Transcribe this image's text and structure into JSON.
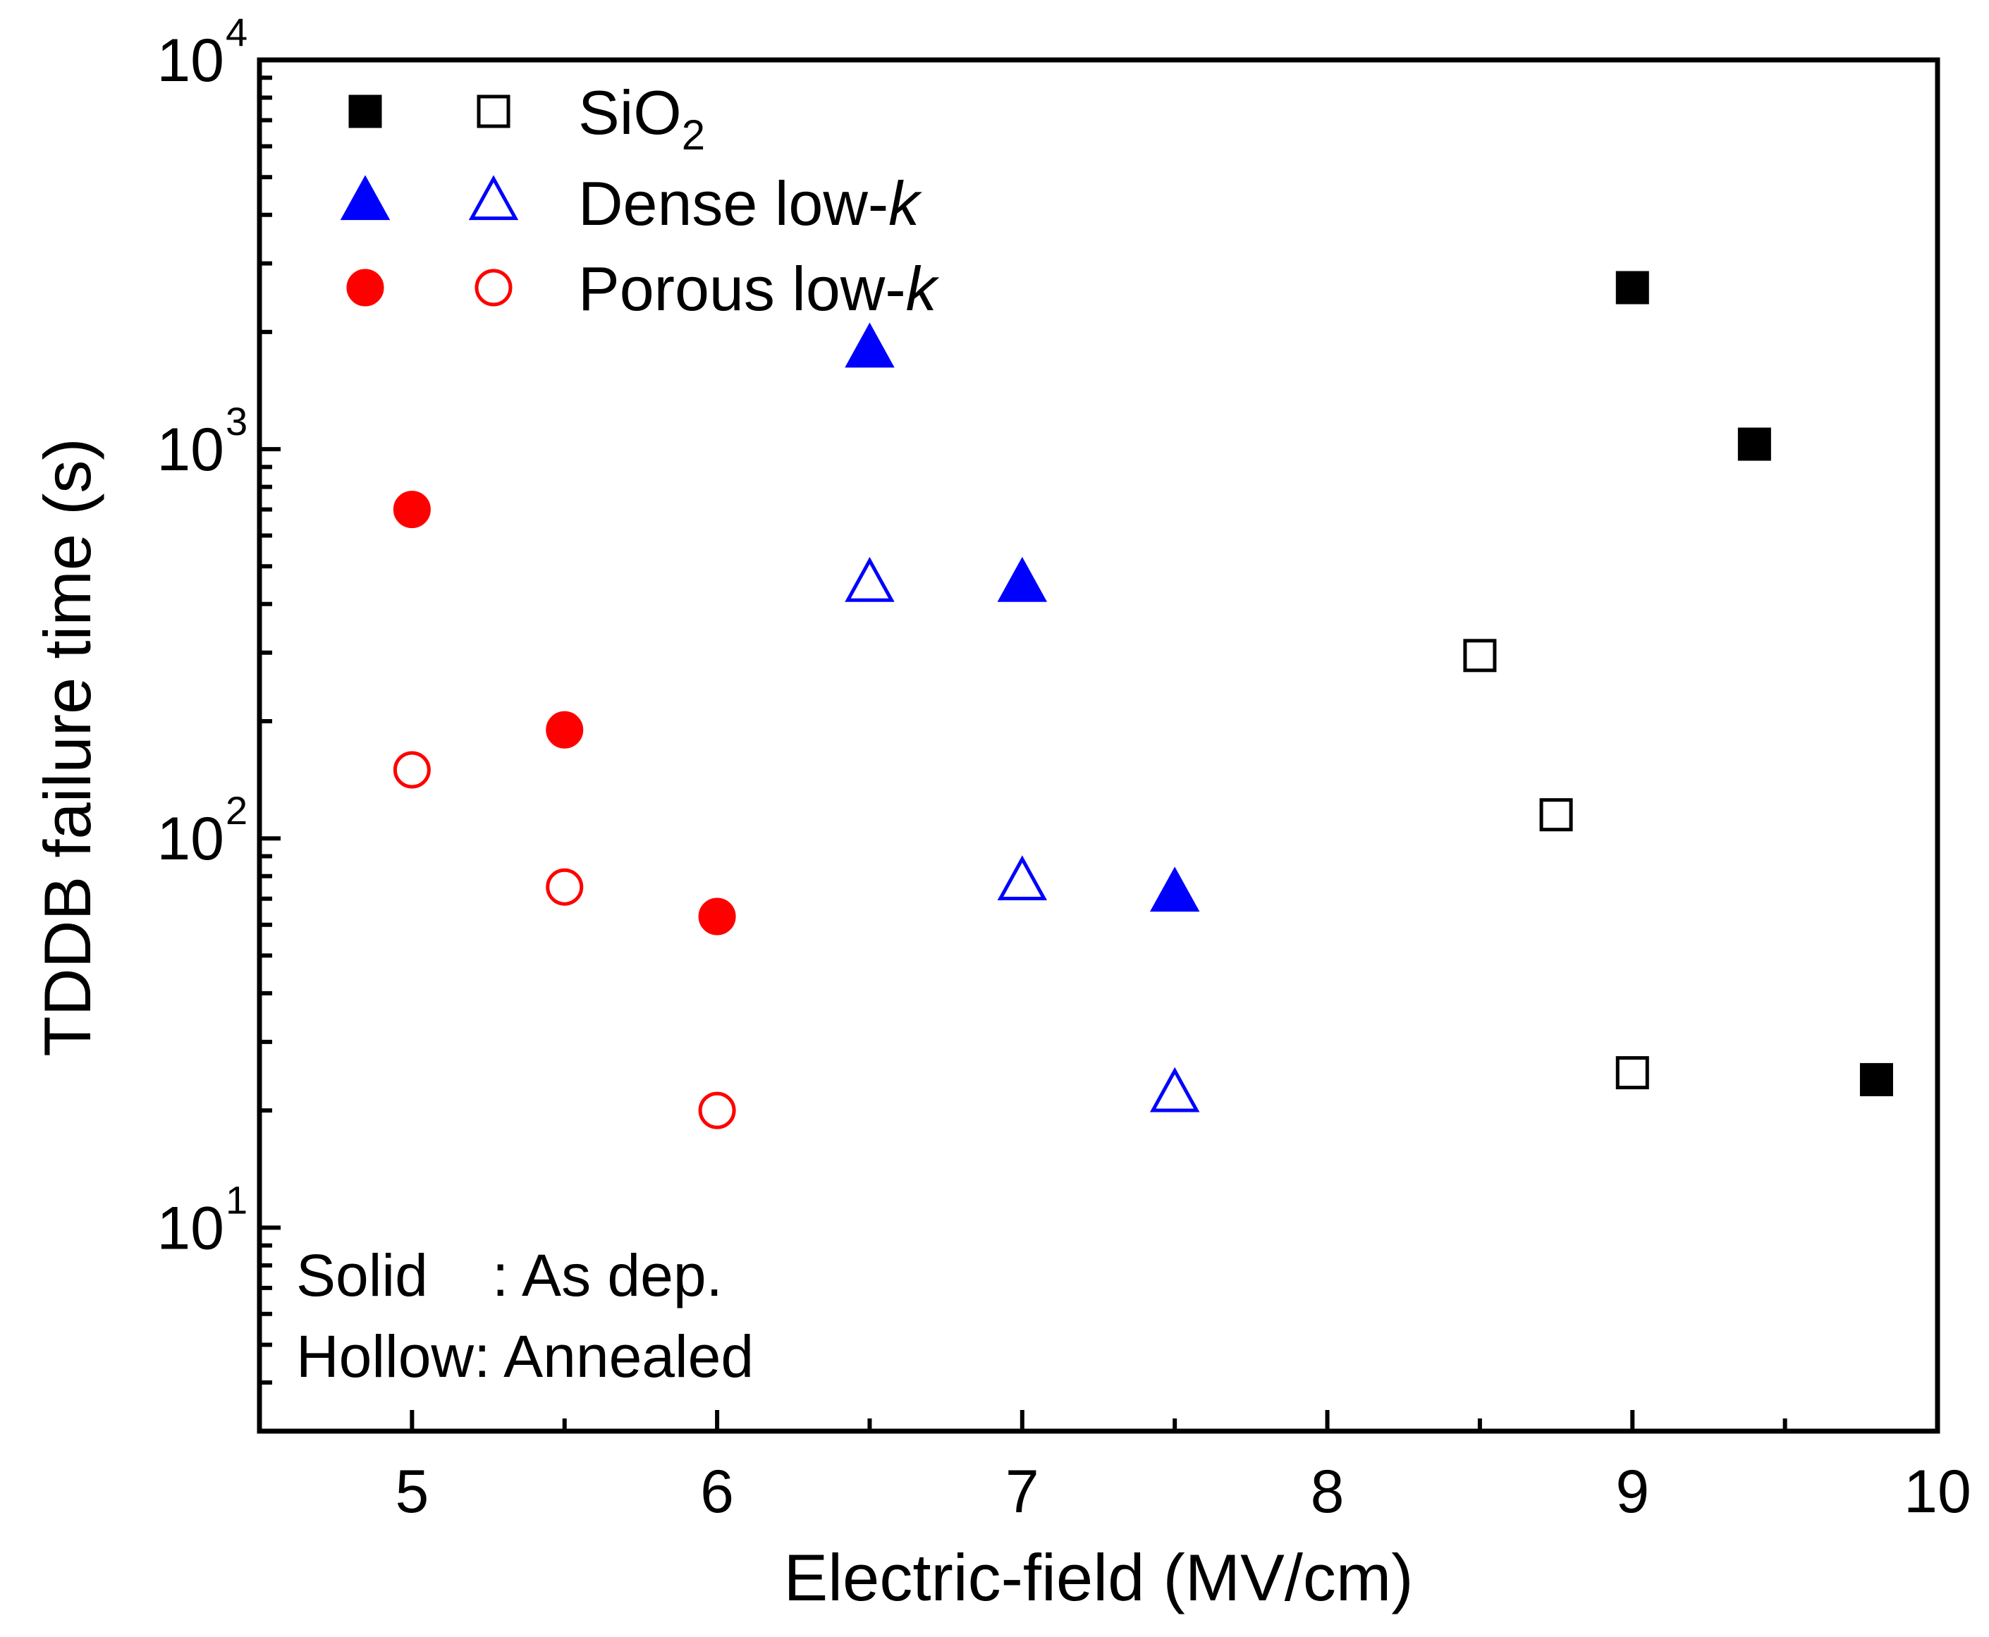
{
  "chart_data": {
    "type": "scatter",
    "title": "",
    "xlabel": "Electric-field (MV/cm)",
    "ylabel": "TDDB failure time (s)",
    "xlim": [
      4.5,
      10
    ],
    "ylim": [
      3,
      10000
    ],
    "yscale": "log",
    "x_ticks": [
      "5",
      "6",
      "7",
      "8",
      "9",
      "10"
    ],
    "y_ticks": [
      {
        "base": "10",
        "exp": "1"
      },
      {
        "base": "10",
        "exp": "2"
      },
      {
        "base": "10",
        "exp": "3"
      },
      {
        "base": "10",
        "exp": "4"
      }
    ],
    "series": [
      {
        "name": "SiO2 (as dep.)",
        "material": "SiO2",
        "treatment": "as dep.",
        "marker": "square",
        "filled": true,
        "color": "#000000",
        "x": [
          9.0,
          9.4,
          9.8
        ],
        "y": [
          2600,
          1030,
          24
        ]
      },
      {
        "name": "SiO2 (annealed)",
        "material": "SiO2",
        "treatment": "annealed",
        "marker": "square",
        "filled": false,
        "color": "#000000",
        "x": [
          8.5,
          8.75,
          9.0
        ],
        "y": [
          295,
          115,
          25
        ]
      },
      {
        "name": "Dense low-k (as dep.)",
        "material": "Dense low-k",
        "treatment": "as dep.",
        "marker": "triangle",
        "filled": true,
        "color": "#0000ff",
        "x": [
          6.5,
          7.0,
          7.5
        ],
        "y": [
          1800,
          450,
          72
        ]
      },
      {
        "name": "Dense low-k (annealed)",
        "material": "Dense low-k",
        "treatment": "annealed",
        "marker": "triangle",
        "filled": false,
        "color": "#0000ff",
        "x": [
          6.5,
          7.0,
          7.5
        ],
        "y": [
          450,
          77,
          22
        ]
      },
      {
        "name": "Porous low-k (as dep.)",
        "material": "Porous low-k",
        "treatment": "as dep.",
        "marker": "circle",
        "filled": true,
        "color": "#ff0000",
        "x": [
          5.0,
          5.5,
          6.0
        ],
        "y": [
          700,
          190,
          63
        ]
      },
      {
        "name": "Porous low-k (annealed)",
        "material": "Porous low-k",
        "treatment": "annealed",
        "marker": "circle",
        "filled": false,
        "color": "#ff0000",
        "x": [
          5.0,
          5.5,
          6.0
        ],
        "y": [
          150,
          75,
          20
        ]
      }
    ],
    "legend": {
      "position": "top-left",
      "entries": [
        {
          "label_main": "SiO",
          "label_sub": "2",
          "label_italic": "",
          "marker": "square",
          "color": "#000000"
        },
        {
          "label_main": "Dense low-",
          "label_sub": "",
          "label_italic": "k",
          "marker": "triangle",
          "color": "#0000ff"
        },
        {
          "label_main": "Porous low-",
          "label_sub": "",
          "label_italic": "k",
          "marker": "circle",
          "color": "#ff0000"
        }
      ]
    },
    "annotations": {
      "solid_label": "Solid",
      "solid_value": ": As dep.",
      "hollow_text": "Hollow: Annealed"
    }
  }
}
